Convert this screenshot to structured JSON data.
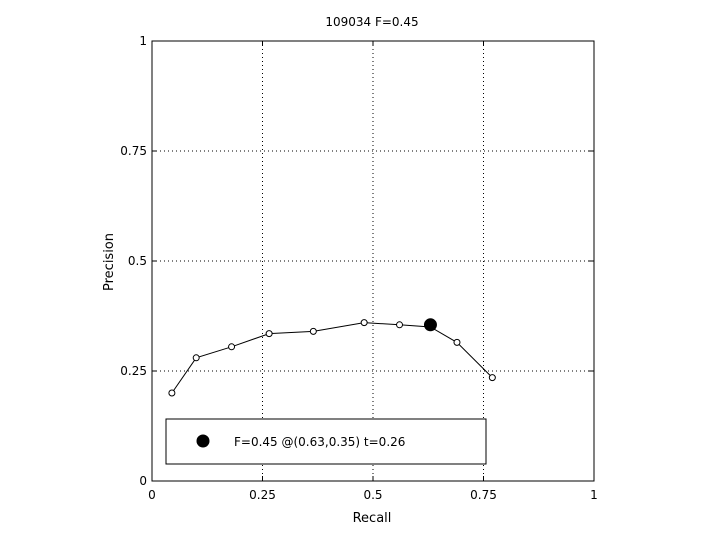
{
  "chart_data": {
    "type": "line",
    "title": "109034 F=0.45",
    "xlabel": "Recall",
    "ylabel": "Precision",
    "xlim": [
      0,
      1
    ],
    "ylim": [
      0,
      1
    ],
    "grid": true,
    "grid_style": "dotted",
    "x_ticks": [
      "0",
      "0.25",
      "0.5",
      "0.75",
      "1"
    ],
    "y_ticks": [
      "0",
      "0.25",
      "0.5",
      "0.75",
      "1"
    ],
    "series": [
      {
        "marker": "open-circle",
        "color": "#000000",
        "points": [
          {
            "x": 0.045,
            "y": 0.2
          },
          {
            "x": 0.1,
            "y": 0.28
          },
          {
            "x": 0.18,
            "y": 0.305
          },
          {
            "x": 0.265,
            "y": 0.335
          },
          {
            "x": 0.365,
            "y": 0.34
          },
          {
            "x": 0.48,
            "y": 0.36
          },
          {
            "x": 0.56,
            "y": 0.355
          },
          {
            "x": 0.63,
            "y": 0.35
          },
          {
            "x": 0.69,
            "y": 0.315
          },
          {
            "x": 0.77,
            "y": 0.235
          }
        ]
      }
    ],
    "highlight_point": {
      "x": 0.63,
      "y": 0.355,
      "marker": "filled-circle",
      "color": "#000000"
    },
    "legend": {
      "placement": "bottom-left",
      "label": "F=0.45 @(0.63,0.35) t=0.26"
    }
  }
}
